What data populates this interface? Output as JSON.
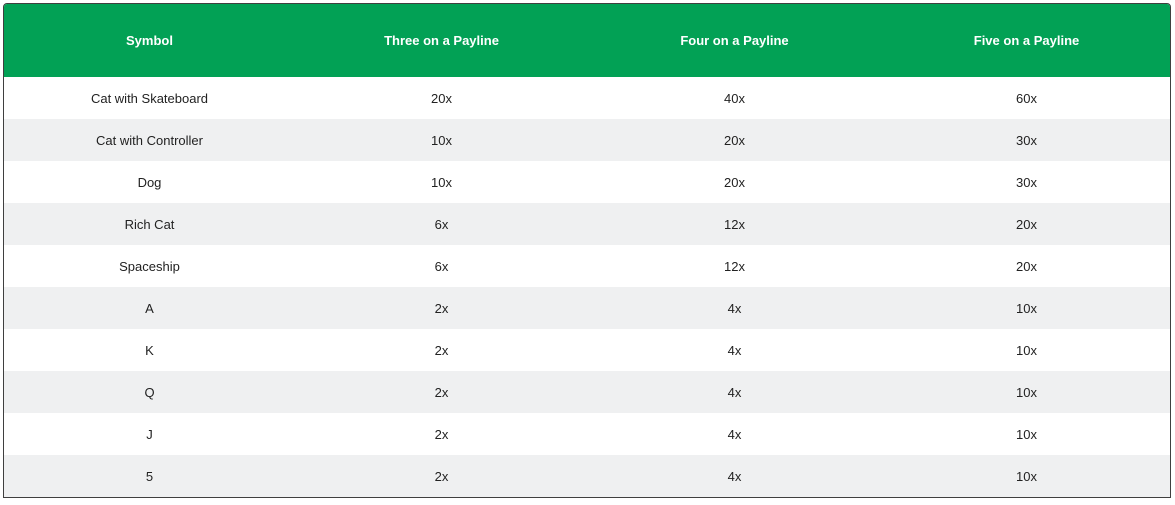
{
  "colors": {
    "header_bg": "#02a155",
    "header_text": "#ffffff",
    "row_alt_bg": "#eff0f1",
    "row_bg": "#ffffff",
    "border": "#3f3f3f"
  },
  "table": {
    "headers": [
      "Symbol",
      "Three on a Payline",
      "Four on a Payline",
      "Five on a Payline"
    ],
    "rows": [
      [
        "Cat with Skateboard",
        "20x",
        "40x",
        "60x"
      ],
      [
        "Cat with Controller",
        "10x",
        "20x",
        "30x"
      ],
      [
        "Dog",
        "10x",
        "20x",
        "30x"
      ],
      [
        "Rich Cat",
        "6x",
        "12x",
        "20x"
      ],
      [
        "Spaceship",
        "6x",
        "12x",
        "20x"
      ],
      [
        "A",
        "2x",
        "4x",
        "10x"
      ],
      [
        "K",
        "2x",
        "4x",
        "10x"
      ],
      [
        "Q",
        "2x",
        "4x",
        "10x"
      ],
      [
        "J",
        "2x",
        "4x",
        "10x"
      ],
      [
        "5",
        "2x",
        "4x",
        "10x"
      ]
    ]
  }
}
